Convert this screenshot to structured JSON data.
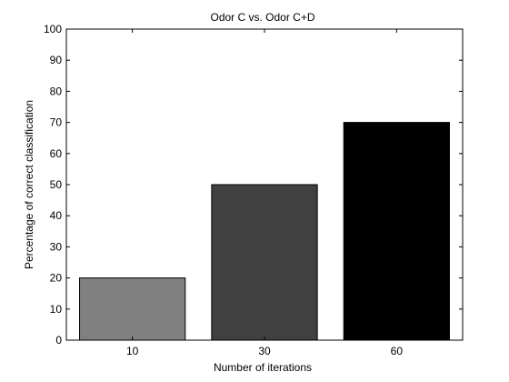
{
  "chart_data": {
    "type": "bar",
    "title": "Odor C vs. Odor C+D",
    "xlabel": "Number of iterations",
    "ylabel": "Percentage of correct classification",
    "categories": [
      "10",
      "30",
      "60"
    ],
    "values": [
      20,
      50,
      70
    ],
    "bar_colors": [
      "#808080",
      "#404040",
      "#000000"
    ],
    "ylim": [
      0,
      100
    ],
    "yticks": [
      0,
      10,
      20,
      30,
      40,
      50,
      60,
      70,
      80,
      90,
      100
    ],
    "grid": false,
    "legend": false
  }
}
